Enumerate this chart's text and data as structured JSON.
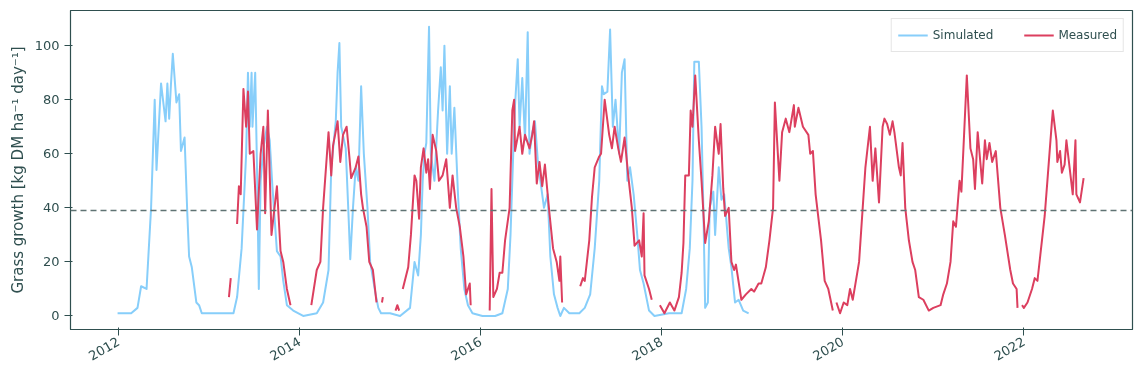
{
  "chart_data": {
    "type": "line",
    "ylabel": "Grass growth [kg DM ha⁻¹ day⁻¹]",
    "xlim": [
      2011.47,
      2023.2
    ],
    "xticks": [
      2012,
      2014,
      2016,
      2018,
      2020,
      2022
    ],
    "ylim": [
      -5,
      113
    ],
    "yticks": [
      0,
      20,
      40,
      60,
      80,
      100
    ],
    "grid": false,
    "legend": "top right",
    "line_style": "solid",
    "marker": "none",
    "ref_lines": [
      {
        "axis": "y",
        "value": 39,
        "color": "#5f7373",
        "line_style": "dashed"
      }
    ],
    "series": [
      {
        "name": "Simulated",
        "color": "#87cefa",
        "x": [
          2011.99,
          2012.14,
          2012.21,
          2012.25,
          2012.31,
          2012.34,
          2012.36,
          2012.4,
          2012.42,
          2012.47,
          2012.52,
          2012.54,
          2012.56,
          2012.58,
          2012.6,
          2012.64,
          2012.67,
          2012.69,
          2012.73,
          2012.76,
          2012.78,
          2012.81,
          2012.86,
          2012.89,
          2012.92,
          2013.04,
          2013.15,
          2013.27,
          2013.31,
          2013.36,
          2013.41,
          2013.43,
          2013.45,
          2013.47,
          2013.48,
          2013.51,
          2013.53,
          2013.55,
          2013.57,
          2013.6,
          2013.64,
          2013.67,
          2013.7,
          2013.75,
          2013.79,
          2013.82,
          2013.86,
          2013.93,
          2014.04,
          2014.19,
          2014.26,
          2014.32,
          2014.35,
          2014.4,
          2014.42,
          2014.44,
          2014.46,
          2014.51,
          2014.54,
          2014.56,
          2014.59,
          2014.62,
          2014.65,
          2014.68,
          2014.71,
          2014.75,
          2014.78,
          2014.84,
          2014.87,
          2014.9,
          2015.0,
          2015.11,
          2015.22,
          2015.27,
          2015.31,
          2015.34,
          2015.36,
          2015.38,
          2015.4,
          2015.43,
          2015.45,
          2015.49,
          2015.53,
          2015.56,
          2015.58,
          2015.6,
          2015.63,
          2015.66,
          2015.68,
          2015.71,
          2015.75,
          2015.78,
          2015.82,
          2015.86,
          2015.91,
          2016.02,
          2016.16,
          2016.24,
          2016.3,
          2016.33,
          2016.36,
          2016.38,
          2016.41,
          2016.43,
          2016.46,
          2016.49,
          2016.52,
          2016.54,
          2016.57,
          2016.6,
          2016.63,
          2016.66,
          2016.7,
          2016.74,
          2016.77,
          2016.81,
          2016.85,
          2016.88,
          2016.92,
          2016.98,
          2017.09,
          2017.15,
          2017.21,
          2017.26,
          2017.31,
          2017.34,
          2017.36,
          2017.4,
          2017.43,
          2017.46,
          2017.49,
          2017.53,
          2017.56,
          2017.59,
          2017.62,
          2017.65,
          2017.69,
          2017.73,
          2017.76,
          2017.8,
          2017.86,
          2017.92,
          2018.08,
          2018.22,
          2018.27,
          2018.31,
          2018.34,
          2018.36,
          2018.41,
          2018.44,
          2018.46,
          2018.48,
          2018.51,
          2018.53,
          2018.57,
          2018.59,
          2018.63,
          2018.66,
          2018.69,
          2018.74,
          2018.77,
          2018.81,
          2018.85,
          2018.9,
          2018.96
        ],
        "values": [
          1,
          1,
          3,
          11,
          10,
          28,
          40,
          80,
          54,
          86,
          72,
          86,
          73,
          86,
          97,
          79,
          82,
          61,
          66,
          38,
          22,
          18,
          5,
          4,
          1,
          1,
          1,
          1,
          7,
          25,
          60,
          90,
          70,
          90,
          70,
          90,
          55,
          10,
          50,
          62,
          70,
          65,
          48,
          24,
          22,
          13,
          4,
          2,
          0,
          1,
          5,
          17,
          55,
          72,
          90,
          101,
          70,
          62,
          38,
          21,
          40,
          55,
          50,
          85,
          60,
          40,
          20,
          8,
          3,
          1,
          1,
          0,
          3,
          20,
          15,
          30,
          50,
          60,
          64,
          107,
          60,
          50,
          76,
          92,
          76,
          100,
          60,
          85,
          60,
          77,
          45,
          25,
          10,
          4,
          1,
          0,
          0,
          1,
          10,
          30,
          60,
          78,
          95,
          70,
          88,
          65,
          105,
          60,
          68,
          72,
          58,
          50,
          40,
          45,
          22,
          8,
          3,
          0,
          3,
          1,
          1,
          3,
          8,
          25,
          50,
          85,
          82,
          83,
          106,
          70,
          80,
          60,
          90,
          95,
          50,
          55,
          45,
          30,
          17,
          12,
          2,
          0,
          1,
          1,
          10,
          25,
          50,
          94,
          94,
          70,
          40,
          3,
          5,
          40,
          46,
          30,
          55,
          43,
          45,
          25,
          18,
          5,
          6,
          2,
          1
        ]
      },
      {
        "name": "Measured",
        "color": "#dc3f5f",
        "x": [
          2013.22,
          2013.24,
          2013.27,
          2013.31,
          2013.33,
          2013.35,
          2013.38,
          2013.41,
          2013.43,
          2013.45,
          2013.49,
          2013.53,
          2013.57,
          2013.6,
          2013.62,
          2013.65,
          2013.69,
          2013.75,
          2013.79,
          2013.82,
          2013.86,
          2013.9,
          2014.0,
          2014.13,
          2014.19,
          2014.23,
          2014.26,
          2014.32,
          2014.35,
          2014.37,
          2014.42,
          2014.45,
          2014.48,
          2014.52,
          2014.55,
          2014.57,
          2014.62,
          2014.65,
          2014.68,
          2014.7,
          2014.74,
          2014.77,
          2014.81,
          2014.85,
          2014.88,
          2014.91,
          2014.92,
          2015.0,
          2015.06,
          2015.08,
          2015.1,
          2015.12,
          2015.14,
          2015.2,
          2015.23,
          2015.27,
          2015.29,
          2015.32,
          2015.34,
          2015.37,
          2015.4,
          2015.42,
          2015.44,
          2015.47,
          2015.51,
          2015.54,
          2015.58,
          2015.62,
          2015.66,
          2015.69,
          2015.73,
          2015.77,
          2015.81,
          2015.84,
          2015.88,
          2015.89,
          2016.0,
          2016.1,
          2016.12,
          2016.14,
          2016.18,
          2016.21,
          2016.24,
          2016.27,
          2016.32,
          2016.35,
          2016.37,
          2016.38,
          2016.43,
          2016.46,
          2016.49,
          2016.54,
          2016.57,
          2016.59,
          2016.62,
          2016.65,
          2016.68,
          2016.71,
          2016.76,
          2016.8,
          2016.84,
          2016.87,
          2016.88,
          2016.9,
          2017.0,
          2017.1,
          2017.13,
          2017.15,
          2017.2,
          2017.23,
          2017.26,
          2017.31,
          2017.33,
          2017.37,
          2017.42,
          2017.45,
          2017.48,
          2017.52,
          2017.55,
          2017.59,
          2017.63,
          2017.67,
          2017.7,
          2017.75,
          2017.78,
          2017.8,
          2017.81,
          2017.86,
          2017.89,
          2017.94,
          2017.98,
          2018.03,
          2018.09,
          2018.14,
          2018.19,
          2018.22,
          2018.24,
          2018.26,
          2018.3,
          2018.32,
          2018.34,
          2018.37,
          2018.41,
          2018.44,
          2018.48,
          2018.52,
          2018.56,
          2018.59,
          2018.63,
          2018.65,
          2018.68,
          2018.7,
          2018.74,
          2018.77,
          2018.8,
          2018.82,
          2018.88,
          2018.93,
          2018.99,
          2019.02,
          2019.07,
          2019.1,
          2019.15,
          2019.19,
          2019.23,
          2019.25,
          2019.3,
          2019.33,
          2019.37,
          2019.41,
          2019.46,
          2019.47,
          2019.51,
          2019.56,
          2019.62,
          2019.64,
          2019.67,
          2019.7,
          2019.76,
          2019.8,
          2019.84,
          2019.89,
          2019.91,
          2019.93,
          2019.97,
          2020.01,
          2020.05,
          2020.08,
          2020.11,
          2020.14,
          2020.18,
          2020.22,
          2020.25,
          2020.3,
          2020.33,
          2020.36,
          2020.4,
          2020.44,
          2020.46,
          2020.49,
          2020.52,
          2020.55,
          2020.57,
          2020.62,
          2020.64,
          2020.66,
          2020.69,
          2020.73,
          2020.77,
          2020.8,
          2020.84,
          2020.89,
          2020.95,
          2021.0,
          2021.08,
          2021.11,
          2021.15,
          2021.19,
          2021.22,
          2021.25,
          2021.29,
          2021.31,
          2021.33,
          2021.37,
          2021.41,
          2021.44,
          2021.46,
          2021.49,
          2021.54,
          2021.57,
          2021.59,
          2021.62,
          2021.65,
          2021.69,
          2021.74,
          2021.79,
          2021.85,
          2021.88,
          2021.92,
          2021.93,
          2021.95,
          2021.98,
          2022.0,
          2022.04,
          2022.09,
          2022.12,
          2022.15,
          2022.2,
          2022.23,
          2022.26,
          2022.31,
          2022.32,
          2022.36,
          2022.37,
          2022.4,
          2022.42,
          2022.45,
          2022.47,
          2022.54,
          2022.57,
          2022.58,
          2022.62,
          2022.66
        ],
        "values": [
          7,
          14,
          null,
          34,
          48,
          45,
          84,
          70,
          83,
          60,
          61,
          32,
          60,
          70,
          38,
          76,
          30,
          48,
          24,
          20,
          10,
          4,
          null,
          4,
          17,
          20,
          40,
          68,
          52,
          63,
          72,
          57,
          67,
          70,
          59,
          51,
          55,
          59,
          45,
          40,
          33,
          20,
          17,
          5,
          null,
          5,
          7,
          null,
          2,
          4,
          2,
          null,
          10,
          18,
          30,
          52,
          50,
          36,
          55,
          62,
          53,
          58,
          47,
          67,
          61,
          50,
          52,
          58,
          40,
          52,
          40,
          33,
          22,
          8,
          12,
          4,
          null,
          2,
          47,
          7,
          10,
          16,
          16,
          28,
          40,
          76,
          80,
          61,
          70,
          60,
          67,
          62,
          67,
          72,
          49,
          57,
          48,
          56,
          38,
          25,
          20,
          13,
          22,
          5,
          null,
          11,
          14,
          13,
          28,
          44,
          55,
          59,
          60,
          80,
          67,
          62,
          70,
          62,
          57,
          66,
          52,
          40,
          26,
          28,
          22,
          38,
          15,
          10,
          6,
          null,
          4,
          1,
          5,
          2,
          7,
          16,
          27,
          52,
          52,
          76,
          70,
          89,
          65,
          50,
          27,
          35,
          52,
          70,
          60,
          71,
          47,
          37,
          40,
          20,
          17,
          19,
          6,
          8,
          10,
          9,
          12,
          12,
          18,
          28,
          40,
          79,
          50,
          68,
          73,
          68,
          78,
          70,
          77,
          70,
          67,
          60,
          61,
          45,
          28,
          13,
          10,
          2,
          null,
          5,
          1,
          5,
          4,
          10,
          6,
          12,
          20,
          40,
          55,
          70,
          50,
          62,
          42,
          70,
          73,
          71,
          67,
          72,
          68,
          55,
          52,
          64,
          40,
          28,
          20,
          17,
          7,
          6,
          2,
          3,
          4,
          8,
          12,
          20,
          35,
          33,
          50,
          46,
          60,
          89,
          62,
          58,
          47,
          68,
          49,
          65,
          58,
          64,
          57,
          61,
          40,
          30,
          17,
          12,
          10,
          3,
          null,
          4,
          3,
          5,
          10,
          14,
          13,
          28,
          37,
          50,
          72,
          76,
          65,
          57,
          61,
          53,
          56,
          65,
          45,
          65,
          45,
          42,
          51
        ]
      }
    ]
  }
}
